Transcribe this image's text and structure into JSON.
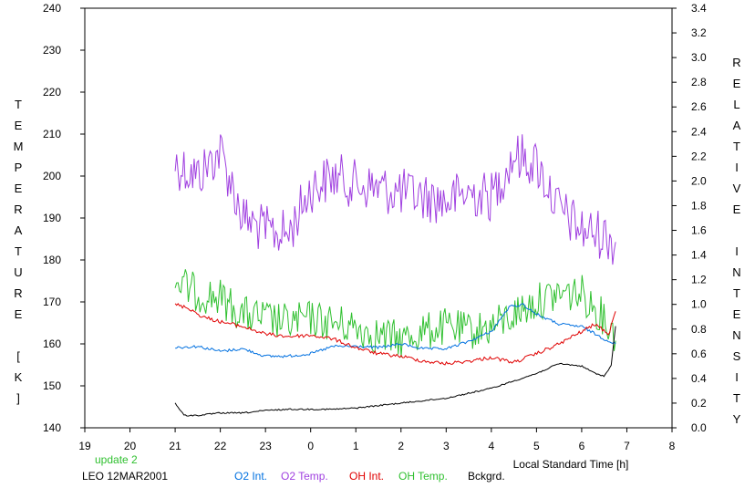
{
  "chart_data": {
    "type": "line",
    "title": "",
    "xlabel": "Local Standard Time [h]",
    "ylabel_left": "TEMPERATURE [K]",
    "ylabel_right": "RELATIVE INTENSITY",
    "xlim": [
      19,
      32
    ],
    "x_tick_labels": [
      "19",
      "20",
      "21",
      "22",
      "23",
      "0",
      "1",
      "2",
      "3",
      "4",
      "5",
      "6",
      "7",
      "8"
    ],
    "ylim_left": [
      140,
      240
    ],
    "y_left_ticks": [
      140,
      150,
      160,
      170,
      180,
      190,
      200,
      210,
      220,
      230,
      240
    ],
    "ylim_right": [
      0,
      3.4
    ],
    "y_right_ticks": [
      "0.0",
      "0.2",
      "0.4",
      "0.6",
      "0.8",
      "1.0",
      "1.2",
      "1.4",
      "1.6",
      "1.8",
      "2.0",
      "2.2",
      "2.4",
      "2.6",
      "2.8",
      "3.0",
      "3.2",
      "3.4"
    ],
    "grid": false,
    "legend_placement": "bottom",
    "series": [
      {
        "name": "O2 Int.",
        "axis": "right",
        "color": "#0070e0",
        "x": [
          21.0,
          21.5,
          22.0,
          22.5,
          23.0,
          23.5,
          24.0,
          24.5,
          25.0,
          25.5,
          26.0,
          26.5,
          27.0,
          27.5,
          28.0,
          28.4,
          28.7,
          29.0,
          29.5,
          30.0,
          30.5,
          30.75
        ],
        "y": [
          0.65,
          0.66,
          0.62,
          0.64,
          0.58,
          0.58,
          0.6,
          0.66,
          0.66,
          0.65,
          0.68,
          0.64,
          0.64,
          0.7,
          0.78,
          0.98,
          1.0,
          0.92,
          0.84,
          0.82,
          0.72,
          0.68
        ]
      },
      {
        "name": "O2 Temp.",
        "axis": "left",
        "color": "#a040e0",
        "x": [
          21.0,
          21.5,
          22.0,
          22.5,
          23.0,
          23.5,
          24.0,
          24.5,
          25.0,
          25.5,
          26.0,
          26.5,
          27.0,
          27.5,
          28.0,
          28.5,
          29.0,
          29.5,
          30.0,
          30.5,
          30.75
        ],
        "y": [
          203,
          200,
          206,
          190,
          187,
          186,
          197,
          200,
          198,
          197,
          196,
          195,
          194,
          196,
          195,
          205,
          203,
          192,
          187,
          186,
          184
        ]
      },
      {
        "name": "OH Int.",
        "axis": "right",
        "color": "#e00000",
        "x": [
          21.0,
          21.3,
          21.6,
          22.0,
          22.5,
          23.0,
          23.5,
          24.0,
          24.5,
          25.0,
          25.5,
          26.0,
          26.5,
          27.0,
          27.5,
          28.0,
          28.5,
          29.0,
          29.5,
          30.0,
          30.3,
          30.6,
          30.75
        ],
        "y": [
          1.0,
          0.97,
          0.9,
          0.86,
          0.82,
          0.76,
          0.74,
          0.75,
          0.72,
          0.65,
          0.6,
          0.58,
          0.54,
          0.52,
          0.54,
          0.57,
          0.53,
          0.6,
          0.68,
          0.78,
          0.84,
          0.76,
          0.95
        ]
      },
      {
        "name": "OH Temp.",
        "axis": "left",
        "color": "#30c030",
        "x": [
          21.0,
          21.5,
          22.0,
          22.5,
          23.0,
          23.5,
          24.0,
          24.5,
          25.0,
          25.5,
          26.0,
          26.5,
          27.0,
          27.5,
          28.0,
          28.5,
          29.0,
          29.5,
          30.0,
          30.5,
          30.75
        ],
        "y": [
          175,
          172,
          171,
          167,
          166,
          165,
          166,
          165,
          164,
          162,
          161,
          163,
          164,
          163,
          164,
          167,
          170,
          172,
          172,
          166,
          162
        ]
      },
      {
        "name": "Bckgrd.",
        "axis": "right",
        "color": "#000000",
        "x": [
          21.0,
          21.2,
          21.5,
          22.0,
          22.5,
          23.0,
          23.5,
          24.0,
          24.5,
          25.0,
          25.5,
          26.0,
          26.5,
          27.0,
          27.5,
          28.0,
          28.5,
          29.0,
          29.5,
          30.0,
          30.3,
          30.5,
          30.65,
          30.75
        ],
        "y": [
          0.2,
          0.1,
          0.1,
          0.12,
          0.12,
          0.14,
          0.15,
          0.15,
          0.15,
          0.16,
          0.18,
          0.2,
          0.22,
          0.24,
          0.28,
          0.32,
          0.38,
          0.44,
          0.52,
          0.5,
          0.44,
          0.42,
          0.5,
          0.82
        ]
      }
    ]
  },
  "footer": {
    "update": "update 2",
    "station": "LEO 12MAR2001",
    "legend": [
      "O2 Int.",
      "O2 Temp.",
      "OH Int.",
      "OH Temp.",
      "Bckgrd."
    ],
    "colors": {
      "update": "#30c030",
      "station": "#000000",
      "legend": [
        "#0070e0",
        "#a040e0",
        "#e00000",
        "#30c030",
        "#000000"
      ]
    }
  }
}
